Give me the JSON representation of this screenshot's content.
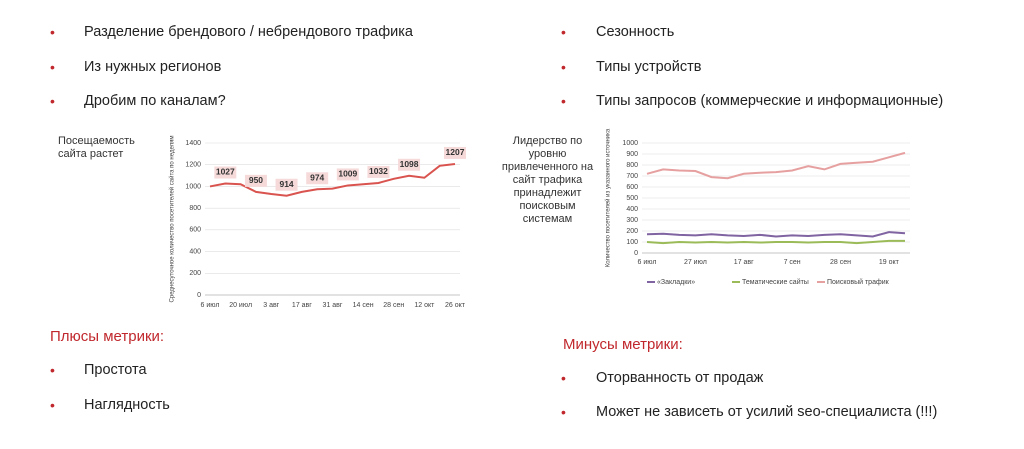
{
  "bullets_left": [
    "Разделение брендового / небрендового трафика",
    "Из нужных регионов",
    "Дробим по каналам?"
  ],
  "bullets_right": [
    "Сезонность",
    "Типы устройств",
    "Типы запросов (коммерческие и информационные)"
  ],
  "note_left": "Посещаемость сайта растет",
  "note_right": "Лидерство по уровню привлеченного на сайт трафика принадлежит поисковым системам",
  "pros": {
    "title": "Плюсы метрики:",
    "items": [
      "Простота",
      "Наглядность"
    ]
  },
  "cons": {
    "title": "Минусы метрики:",
    "items": [
      "Оторванность от продаж",
      "Может не зависеть от усилий seo-специалиста (!!!)"
    ]
  },
  "chart_data": [
    {
      "type": "line",
      "y_label": "Среднесуточное количество посетителей сайта по неделям",
      "categories": [
        "6 июл",
        null,
        "20 июл",
        null,
        "3 авг",
        null,
        "17 авг",
        null,
        "31 авг",
        null,
        "14 сен",
        null,
        "28 сен",
        null,
        "12 окт",
        null,
        "26 окт"
      ],
      "series": [
        {
          "color": "#d9534f",
          "values": [
            1000,
            1027,
            1020,
            950,
            930,
            914,
            950,
            974,
            980,
            1009,
            1020,
            1032,
            1070,
            1098,
            1080,
            1190,
            1207
          ],
          "value_labels": [
            null,
            "1027",
            null,
            "950",
            null,
            "914",
            null,
            "974",
            null,
            "1009",
            null,
            "1032",
            null,
            "1098",
            null,
            null,
            "1207"
          ]
        }
      ],
      "ylim": [
        0,
        1400
      ],
      "yticks": [
        0,
        200,
        400,
        600,
        800,
        1000,
        1200,
        1400
      ],
      "grid": true
    },
    {
      "type": "line",
      "y_label": "Количество посетителей из указанного источника",
      "categories": [
        "6 июл",
        null,
        null,
        "27 июл",
        null,
        null,
        "17 авг",
        null,
        null,
        "7 сен",
        null,
        null,
        "28 сен",
        null,
        null,
        "19 окт",
        null
      ],
      "series": [
        {
          "name": "«Закладки»",
          "color": "#8064a2",
          "values": [
            170,
            175,
            165,
            160,
            170,
            160,
            155,
            165,
            150,
            160,
            155,
            165,
            170,
            160,
            150,
            190,
            180
          ]
        },
        {
          "name": "Тематические сайты",
          "color": "#9bbb59",
          "values": [
            100,
            90,
            100,
            95,
            100,
            95,
            100,
            95,
            100,
            100,
            95,
            100,
            100,
            90,
            100,
            110,
            110
          ]
        },
        {
          "name": "Поисковый трафик",
          "color": "#e6a0a0",
          "values": [
            720,
            760,
            750,
            745,
            690,
            680,
            720,
            730,
            735,
            750,
            790,
            760,
            810,
            820,
            830,
            870,
            910
          ]
        }
      ],
      "ylim": [
        0,
        1000
      ],
      "yticks": [
        0,
        100,
        200,
        300,
        400,
        500,
        600,
        700,
        800,
        900,
        1000
      ],
      "grid": true
    }
  ]
}
